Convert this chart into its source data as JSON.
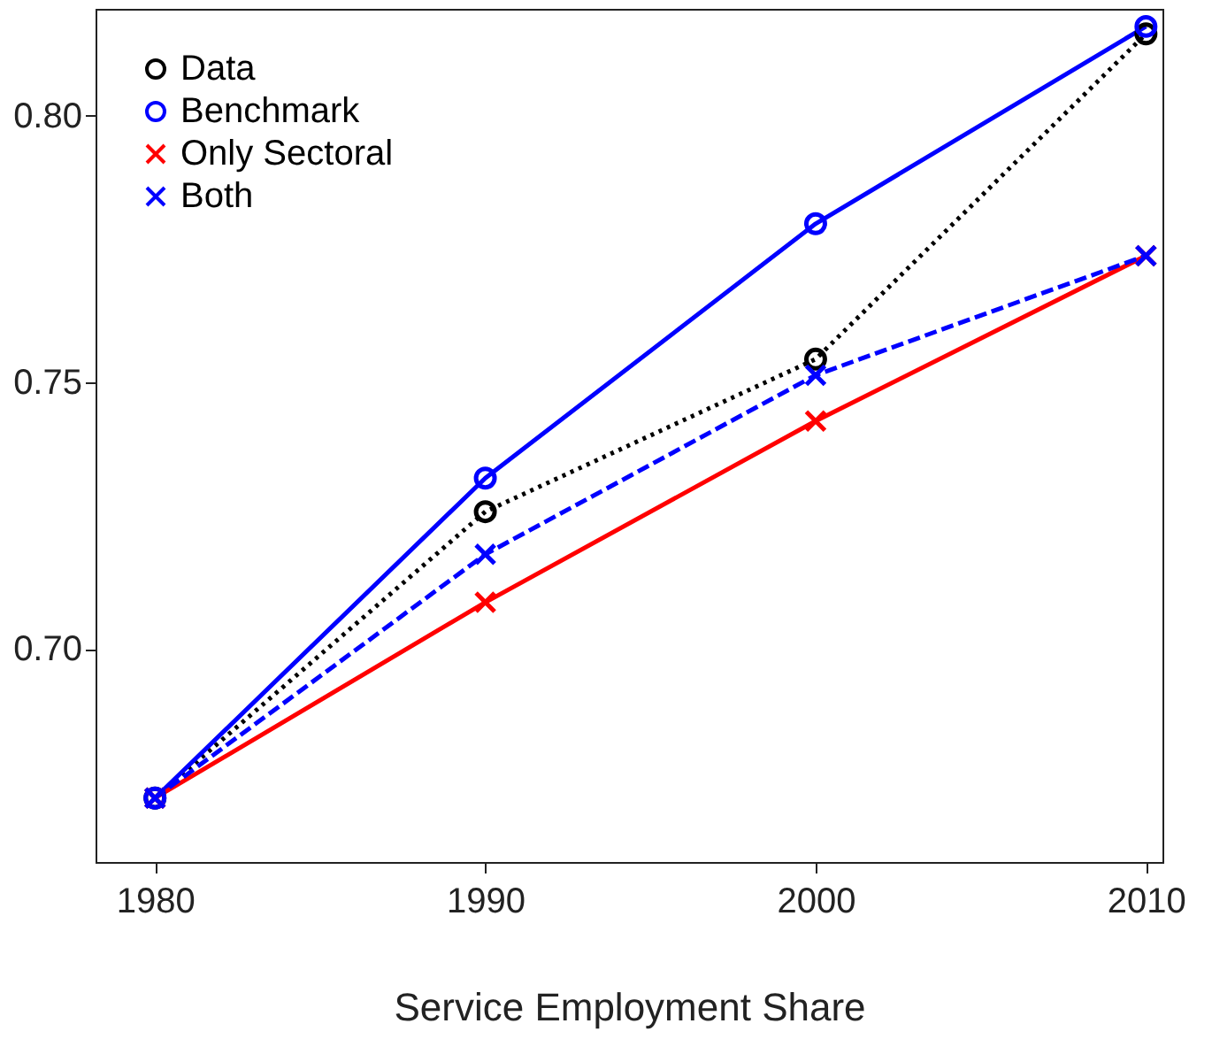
{
  "chart_data": {
    "type": "line",
    "xlabel": "Service Employment Share",
    "x": [
      1980,
      1990,
      2000,
      2010
    ],
    "series": [
      {
        "name": "Data",
        "color": "#000000",
        "values": [
          0.672,
          0.7257,
          0.7543,
          0.8153
        ],
        "marker": "circle",
        "line_style": "dotted"
      },
      {
        "name": "Benchmark",
        "color": "#0000ff",
        "values": [
          0.672,
          0.732,
          0.7797,
          0.8167
        ],
        "marker": "circle",
        "line_style": "solid"
      },
      {
        "name": "Only Sectoral",
        "color": "#ff0000",
        "values": [
          0.672,
          0.7087,
          0.7427,
          0.7737
        ],
        "marker": "cross",
        "line_style": "solid"
      },
      {
        "name": "Both",
        "color": "#0000ff",
        "values": [
          0.672,
          0.7177,
          0.7513,
          0.7737
        ],
        "marker": "cross",
        "line_style": "dashed"
      }
    ],
    "xlim": [
      1978.2,
      2010.5
    ],
    "xticks": [
      1980,
      1990,
      2000,
      2010
    ],
    "ylim": [
      0.66,
      0.82
    ],
    "yticks": [
      {
        "value": 0.7,
        "label": "0.70"
      },
      {
        "value": 0.75,
        "label": "0.75"
      },
      {
        "value": 0.8,
        "label": "0.80"
      }
    ],
    "grid": false,
    "legend": "top left"
  }
}
